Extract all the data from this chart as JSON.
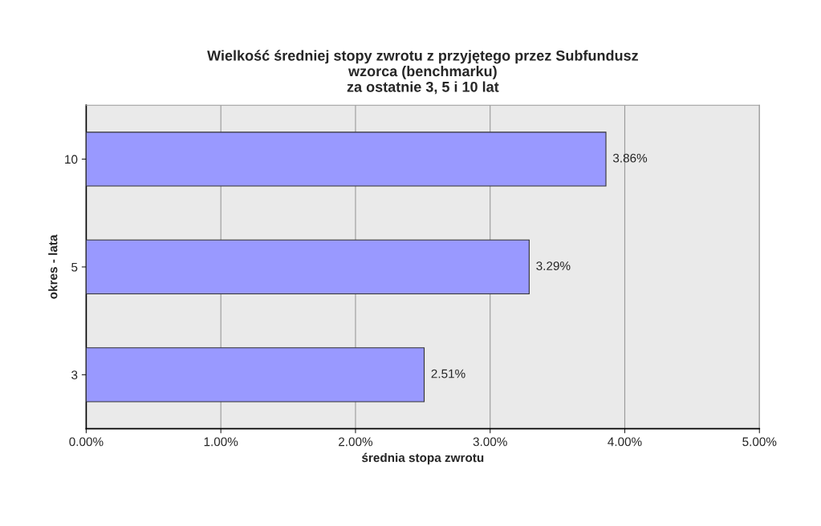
{
  "chart_data": {
    "type": "bar",
    "orientation": "horizontal",
    "title": "Wielkość średniej stopy zwrotu z przyjętego przez Subfundusz\nwzorca (benchmarku)\nza ostatnie 3, 5 i 10 lat",
    "xlabel": "średnia stopa zwrotu",
    "ylabel": "okres - lata",
    "categories": [
      "10",
      "5",
      "3"
    ],
    "values": [
      3.86,
      3.29,
      2.51
    ],
    "value_labels": [
      "3.86%",
      "3.29%",
      "2.51%"
    ],
    "color": "#9999ff",
    "xlim": [
      0,
      5
    ],
    "xticks": [
      {
        "value": 0,
        "label": "0.00%"
      },
      {
        "value": 1,
        "label": "1.00%"
      },
      {
        "value": 2,
        "label": "2.00%"
      },
      {
        "value": 3,
        "label": "3.00%"
      },
      {
        "value": 4,
        "label": "4.00%"
      },
      {
        "value": 5,
        "label": "5.00%"
      }
    ],
    "grid": "x",
    "legend": false
  }
}
